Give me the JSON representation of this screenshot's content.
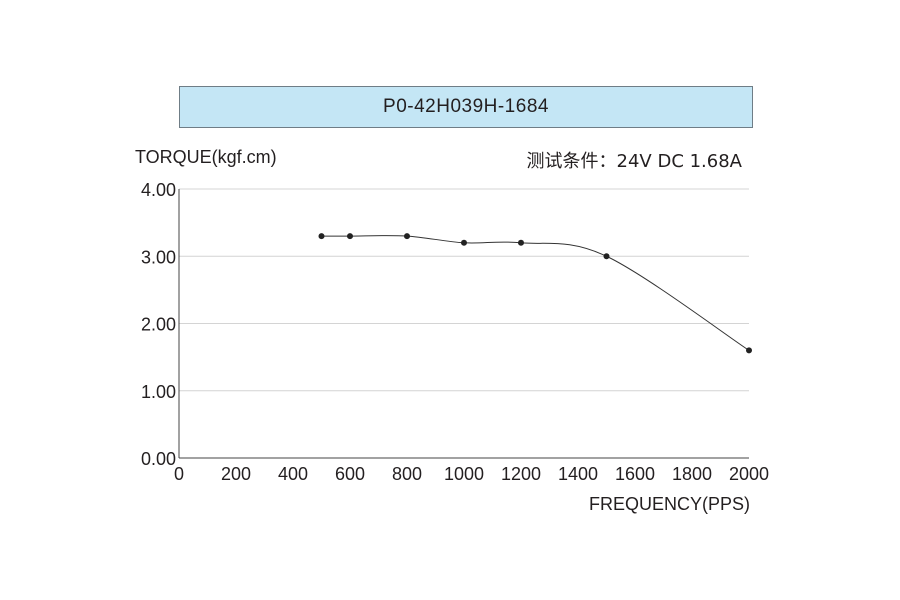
{
  "chart_data": {
    "type": "line",
    "title": "P0-42H039H-1684",
    "subtitle": "测试条件：24V DC   1.68A",
    "xlabel": "FREQUENCY(PPS)",
    "ylabel": "TORQUE(kgf.cm)",
    "xlim": [
      0,
      2000
    ],
    "ylim": [
      0,
      4
    ],
    "x_ticks": [
      "0",
      "200",
      "400",
      "600",
      "800",
      "1000",
      "1200",
      "1400",
      "1600",
      "1800",
      "2000"
    ],
    "y_ticks": [
      "0.00",
      "1.00",
      "2.00",
      "3.00",
      "4.00"
    ],
    "grid": "horizontal",
    "series": [
      {
        "x": [
          500,
          600,
          800,
          1000,
          1200,
          1500,
          2000
        ],
        "y": [
          3.3,
          3.3,
          3.3,
          3.2,
          3.2,
          3.0,
          1.6
        ]
      }
    ]
  }
}
